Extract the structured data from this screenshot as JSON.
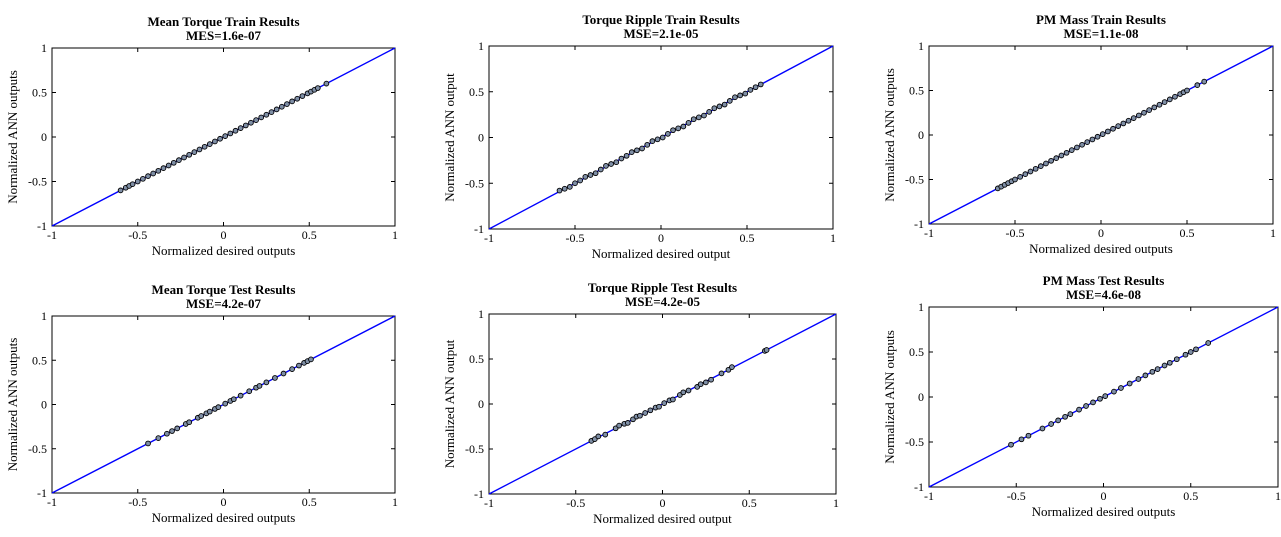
{
  "colors": {
    "line": "#0000ff",
    "marker_edge": "#000000",
    "marker_fill": "#7f8fa6",
    "axes": "#000000"
  },
  "chart_data": [
    {
      "type": "scatter",
      "title": "Mean Torque Train Results",
      "subtitle": "MES=1.6e-07",
      "xlabel": "Normalized desired outputs",
      "ylabel": "Normalized ANN outputs",
      "xlim": [
        -1,
        1
      ],
      "ylim": [
        -1,
        1
      ],
      "x_ticks": [
        "-1",
        "-0.5",
        "0",
        "0.5",
        "1"
      ],
      "y_ticks": [
        "1",
        "0.5",
        "0",
        "-0.5",
        "-1"
      ],
      "reference_line": {
        "x": [
          -1,
          1
        ],
        "y": [
          -1,
          1
        ]
      },
      "points": {
        "x": [
          -0.6,
          -0.57,
          -0.55,
          -0.53,
          -0.5,
          -0.47,
          -0.44,
          -0.41,
          -0.38,
          -0.35,
          -0.32,
          -0.29,
          -0.26,
          -0.23,
          -0.2,
          -0.17,
          -0.14,
          -0.11,
          -0.08,
          -0.05,
          -0.02,
          0.01,
          0.04,
          0.07,
          0.1,
          0.13,
          0.16,
          0.19,
          0.22,
          0.25,
          0.28,
          0.31,
          0.34,
          0.37,
          0.4,
          0.43,
          0.46,
          0.49,
          0.51,
          0.53,
          0.55,
          0.6
        ],
        "y": [
          -0.6,
          -0.57,
          -0.55,
          -0.53,
          -0.5,
          -0.47,
          -0.44,
          -0.41,
          -0.38,
          -0.35,
          -0.32,
          -0.29,
          -0.26,
          -0.23,
          -0.2,
          -0.17,
          -0.14,
          -0.11,
          -0.08,
          -0.05,
          -0.02,
          0.01,
          0.04,
          0.07,
          0.1,
          0.13,
          0.16,
          0.19,
          0.22,
          0.25,
          0.28,
          0.31,
          0.34,
          0.37,
          0.4,
          0.43,
          0.46,
          0.49,
          0.51,
          0.53,
          0.55,
          0.6
        ]
      },
      "grid": false
    },
    {
      "type": "scatter",
      "title": "Torque Ripple Train Results",
      "subtitle": "MSE=2.1e-05",
      "xlabel": "Normalized desired output",
      "ylabel": "Normalized ANN output",
      "xlim": [
        -1,
        1
      ],
      "ylim": [
        -1,
        1
      ],
      "x_ticks": [
        "-1",
        "-0.5",
        "0",
        "0.5",
        "1"
      ],
      "y_ticks": [
        "1",
        "0.5",
        "0",
        "-0.5",
        "-1"
      ],
      "reference_line": {
        "x": [
          -1,
          1
        ],
        "y": [
          -1,
          1
        ]
      },
      "points": {
        "x": [
          -0.59,
          -0.56,
          -0.53,
          -0.5,
          -0.47,
          -0.44,
          -0.41,
          -0.38,
          -0.35,
          -0.32,
          -0.29,
          -0.26,
          -0.23,
          -0.2,
          -0.17,
          -0.14,
          -0.11,
          -0.08,
          -0.05,
          -0.02,
          0.01,
          0.04,
          0.07,
          0.1,
          0.13,
          0.16,
          0.19,
          0.22,
          0.25,
          0.28,
          0.31,
          0.34,
          0.37,
          0.4,
          0.43,
          0.46,
          0.49,
          0.52,
          0.55,
          0.58
        ],
        "y": [
          -0.58,
          -0.56,
          -0.54,
          -0.5,
          -0.47,
          -0.43,
          -0.41,
          -0.39,
          -0.35,
          -0.31,
          -0.29,
          -0.27,
          -0.23,
          -0.2,
          -0.16,
          -0.14,
          -0.12,
          -0.08,
          -0.04,
          -0.02,
          0.0,
          0.04,
          0.08,
          0.1,
          0.12,
          0.16,
          0.2,
          0.22,
          0.24,
          0.28,
          0.32,
          0.34,
          0.36,
          0.4,
          0.44,
          0.46,
          0.48,
          0.52,
          0.55,
          0.58
        ]
      },
      "grid": false
    },
    {
      "type": "scatter",
      "title": "PM Mass Train Results",
      "subtitle": "MSE=1.1e-08",
      "xlabel": "Normalized desired outputs",
      "ylabel": "Normalized ANN outputs",
      "xlim": [
        -1,
        1
      ],
      "ylim": [
        -1,
        1
      ],
      "x_ticks": [
        "-1",
        "-0.5",
        "0",
        "0.5",
        "1"
      ],
      "y_ticks": [
        "1",
        "0.5",
        "0",
        "-0.5",
        "-1"
      ],
      "reference_line": {
        "x": [
          -1,
          1
        ],
        "y": [
          -1,
          1
        ]
      },
      "points": {
        "x": [
          -0.6,
          -0.58,
          -0.56,
          -0.54,
          -0.52,
          -0.5,
          -0.47,
          -0.44,
          -0.41,
          -0.38,
          -0.35,
          -0.32,
          -0.29,
          -0.26,
          -0.23,
          -0.2,
          -0.17,
          -0.14,
          -0.11,
          -0.08,
          -0.05,
          -0.02,
          0.01,
          0.04,
          0.07,
          0.1,
          0.13,
          0.16,
          0.19,
          0.22,
          0.25,
          0.28,
          0.31,
          0.34,
          0.37,
          0.4,
          0.43,
          0.46,
          0.48,
          0.5,
          0.56,
          0.6
        ],
        "y": [
          -0.6,
          -0.58,
          -0.56,
          -0.54,
          -0.52,
          -0.5,
          -0.47,
          -0.44,
          -0.41,
          -0.38,
          -0.35,
          -0.32,
          -0.29,
          -0.26,
          -0.23,
          -0.2,
          -0.17,
          -0.14,
          -0.11,
          -0.08,
          -0.05,
          -0.02,
          0.01,
          0.04,
          0.07,
          0.1,
          0.13,
          0.16,
          0.19,
          0.22,
          0.25,
          0.28,
          0.31,
          0.34,
          0.37,
          0.4,
          0.43,
          0.46,
          0.48,
          0.5,
          0.56,
          0.6
        ]
      },
      "grid": false
    },
    {
      "type": "scatter",
      "title": "Mean Torque Test Results",
      "subtitle": "MSE=4.2e-07",
      "xlabel": "Normalized desired outputs",
      "ylabel": "Normalized ANN outputs",
      "xlim": [
        -1,
        1
      ],
      "ylim": [
        -1,
        1
      ],
      "x_ticks": [
        "-1",
        "-0.5",
        "0",
        "0.5",
        "1"
      ],
      "y_ticks": [
        "1",
        "0.5",
        "0",
        "-0.5",
        "-1"
      ],
      "reference_line": {
        "x": [
          -1,
          1
        ],
        "y": [
          -1,
          1
        ]
      },
      "points": {
        "x": [
          -0.44,
          -0.38,
          -0.33,
          -0.3,
          -0.27,
          -0.22,
          -0.2,
          -0.15,
          -0.13,
          -0.1,
          -0.08,
          -0.05,
          -0.03,
          0.01,
          0.04,
          0.06,
          0.1,
          0.15,
          0.19,
          0.21,
          0.25,
          0.3,
          0.35,
          0.4,
          0.44,
          0.47,
          0.49,
          0.51
        ],
        "y": [
          -0.44,
          -0.38,
          -0.33,
          -0.3,
          -0.27,
          -0.22,
          -0.2,
          -0.15,
          -0.13,
          -0.1,
          -0.08,
          -0.05,
          -0.03,
          0.01,
          0.04,
          0.06,
          0.1,
          0.15,
          0.19,
          0.21,
          0.25,
          0.3,
          0.35,
          0.4,
          0.44,
          0.47,
          0.49,
          0.51
        ]
      },
      "grid": false
    },
    {
      "type": "scatter",
      "title": "Torque Ripple Test Results",
      "subtitle": "MSE=4.2e-05",
      "xlabel": "Normalized desired output",
      "ylabel": "Normalized ANN output",
      "xlim": [
        -1,
        1
      ],
      "ylim": [
        -1,
        1
      ],
      "x_ticks": [
        "-1",
        "-0.5",
        "0",
        "0.5",
        "1"
      ],
      "y_ticks": [
        "1",
        "0.5",
        "0",
        "-0.5",
        "-1"
      ],
      "reference_line": {
        "x": [
          -1,
          1
        ],
        "y": [
          -1,
          1
        ]
      },
      "points": {
        "x": [
          -0.41,
          -0.39,
          -0.37,
          -0.33,
          -0.27,
          -0.25,
          -0.22,
          -0.2,
          -0.17,
          -0.15,
          -0.13,
          -0.1,
          -0.07,
          -0.04,
          -0.02,
          0.01,
          0.04,
          0.06,
          0.1,
          0.12,
          0.15,
          0.2,
          0.22,
          0.25,
          0.28,
          0.34,
          0.38,
          0.4,
          0.59,
          0.6
        ],
        "y": [
          -0.41,
          -0.39,
          -0.36,
          -0.34,
          -0.27,
          -0.24,
          -0.22,
          -0.21,
          -0.17,
          -0.14,
          -0.13,
          -0.1,
          -0.07,
          -0.04,
          -0.03,
          0.01,
          0.04,
          0.05,
          0.1,
          0.13,
          0.15,
          0.19,
          0.22,
          0.24,
          0.27,
          0.34,
          0.38,
          0.41,
          0.59,
          0.6
        ]
      },
      "grid": false
    },
    {
      "type": "scatter",
      "title": "PM Mass Test Results",
      "subtitle": "MSE=4.6e-08",
      "xlabel": "Normalized desired outputs",
      "ylabel": "Normalized ANN outputs",
      "xlim": [
        -1,
        1
      ],
      "ylim": [
        -1,
        1
      ],
      "x_ticks": [
        "-1",
        "-0.5",
        "0",
        "0.5",
        "1"
      ],
      "y_ticks": [
        "1",
        "0.5",
        "0",
        "-0.5",
        "-1"
      ],
      "reference_line": {
        "x": [
          -1,
          1
        ],
        "y": [
          -1,
          1
        ]
      },
      "points": {
        "x": [
          -0.53,
          -0.47,
          -0.43,
          -0.35,
          -0.3,
          -0.26,
          -0.22,
          -0.19,
          -0.14,
          -0.1,
          -0.06,
          -0.02,
          0.01,
          0.06,
          0.1,
          0.15,
          0.2,
          0.24,
          0.28,
          0.31,
          0.35,
          0.38,
          0.42,
          0.47,
          0.5,
          0.53,
          0.6
        ],
        "y": [
          -0.53,
          -0.47,
          -0.43,
          -0.35,
          -0.3,
          -0.26,
          -0.22,
          -0.19,
          -0.14,
          -0.1,
          -0.06,
          -0.02,
          0.01,
          0.06,
          0.1,
          0.15,
          0.2,
          0.24,
          0.28,
          0.31,
          0.35,
          0.38,
          0.42,
          0.47,
          0.5,
          0.53,
          0.6
        ]
      },
      "grid": false
    }
  ]
}
